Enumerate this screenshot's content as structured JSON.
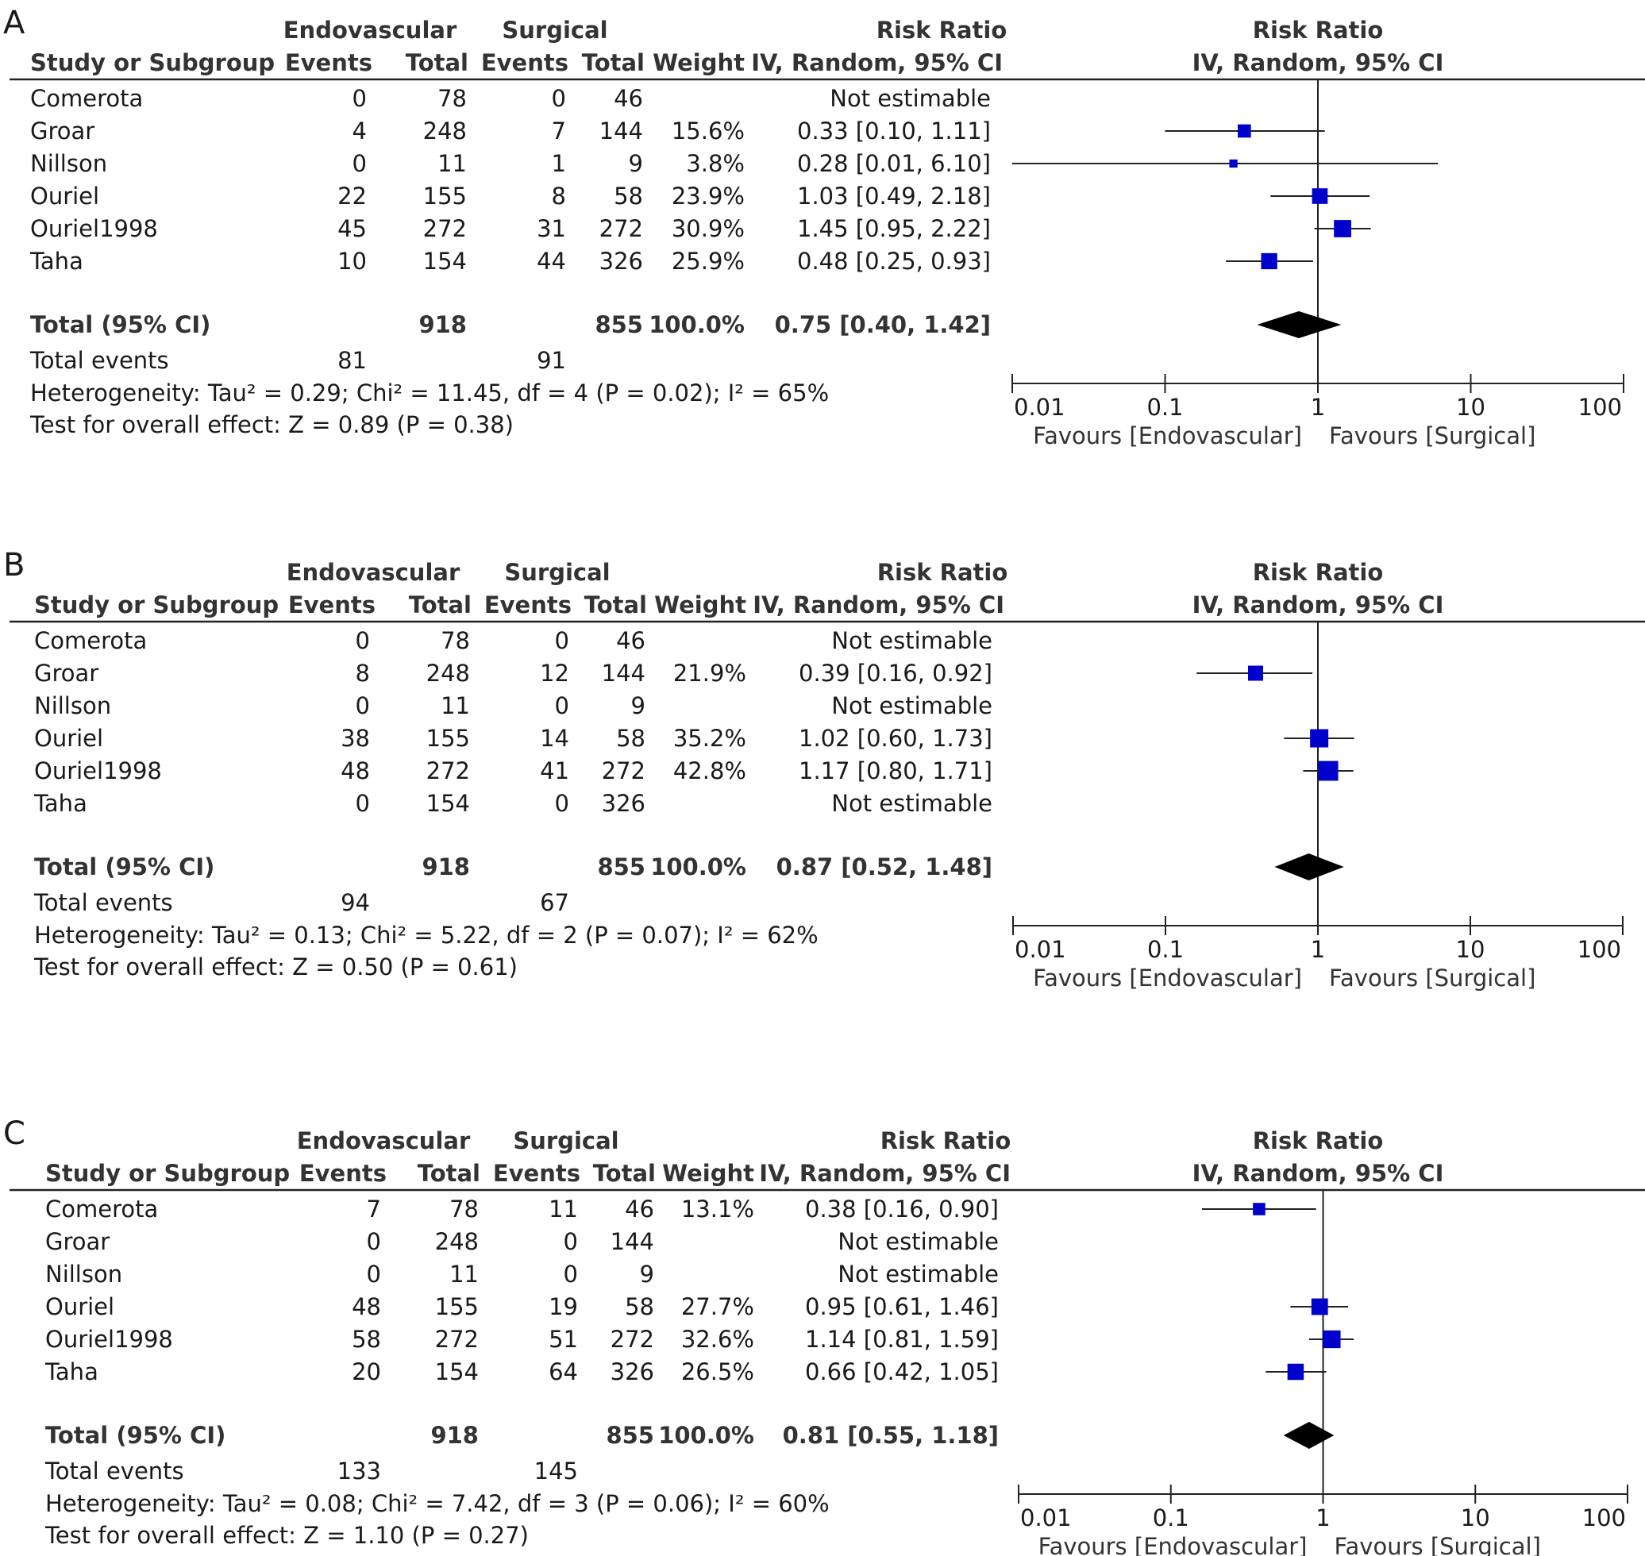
{
  "headers": {
    "group1": "Endovascular",
    "group2": "Surgical",
    "effect": "Risk Ratio",
    "effect_method": "IV, Random, 95% CI",
    "study": "Study or Subgroup",
    "events": "Events",
    "total": "Total",
    "weight": "Weight"
  },
  "axis": {
    "ticks": [
      0.01,
      0.1,
      1,
      10,
      100
    ],
    "tick_labels": [
      "0.01",
      "0.1",
      "1",
      "10",
      "100"
    ],
    "scale": "log",
    "favours_left": "Favours [Endovascular]",
    "favours_right": "Favours [Surgical]"
  },
  "colors": {
    "marker": "#0000cc",
    "diamond": "#000000",
    "text": "#1a1a1a"
  },
  "chart_data": [
    {
      "type": "forest",
      "panel": "A",
      "rows": [
        {
          "study": "Comerota",
          "e1": "0",
          "t1": "78",
          "e2": "0",
          "t2": "46",
          "weight": "",
          "ci": "Not estimable",
          "rr": null,
          "lo": null,
          "hi": null
        },
        {
          "study": "Groar",
          "e1": "4",
          "t1": "248",
          "e2": "7",
          "t2": "144",
          "weight": "15.6%",
          "ci": "0.33 [0.10, 1.11]",
          "rr": 0.33,
          "lo": 0.1,
          "hi": 1.11
        },
        {
          "study": "Nillson",
          "e1": "0",
          "t1": "11",
          "e2": "1",
          "t2": "9",
          "weight": "3.8%",
          "ci": "0.28 [0.01, 6.10]",
          "rr": 0.28,
          "lo": 0.01,
          "hi": 6.1
        },
        {
          "study": "Ouriel",
          "e1": "22",
          "t1": "155",
          "e2": "8",
          "t2": "58",
          "weight": "23.9%",
          "ci": "1.03 [0.49, 2.18]",
          "rr": 1.03,
          "lo": 0.49,
          "hi": 2.18
        },
        {
          "study": "Ouriel1998",
          "e1": "45",
          "t1": "272",
          "e2": "31",
          "t2": "272",
          "weight": "30.9%",
          "ci": "1.45 [0.95, 2.22]",
          "rr": 1.45,
          "lo": 0.95,
          "hi": 2.22
        },
        {
          "study": "Taha",
          "e1": "10",
          "t1": "154",
          "e2": "44",
          "t2": "326",
          "weight": "25.9%",
          "ci": "0.48 [0.25, 0.93]",
          "rr": 0.48,
          "lo": 0.25,
          "hi": 0.93
        }
      ],
      "total": {
        "label": "Total (95% CI)",
        "t1": "918",
        "t2": "855",
        "weight": "100.0%",
        "ci": "0.75 [0.40, 1.42]",
        "rr": 0.75,
        "lo": 0.4,
        "hi": 1.42
      },
      "total_events": {
        "label": "Total events",
        "e1": "81",
        "e2": "91"
      },
      "heterogeneity": "Heterogeneity: Tau² = 0.29; Chi² = 11.45, df = 4 (P = 0.02); I² = 65%",
      "overall": "Test for overall effect: Z = 0.89 (P = 0.38)"
    },
    {
      "type": "forest",
      "panel": "B",
      "rows": [
        {
          "study": "Comerota",
          "e1": "0",
          "t1": "78",
          "e2": "0",
          "t2": "46",
          "weight": "",
          "ci": "Not estimable",
          "rr": null,
          "lo": null,
          "hi": null
        },
        {
          "study": "Groar",
          "e1": "8",
          "t1": "248",
          "e2": "12",
          "t2": "144",
          "weight": "21.9%",
          "ci": "0.39 [0.16, 0.92]",
          "rr": 0.39,
          "lo": 0.16,
          "hi": 0.92
        },
        {
          "study": "Nillson",
          "e1": "0",
          "t1": "11",
          "e2": "0",
          "t2": "9",
          "weight": "",
          "ci": "Not estimable",
          "rr": null,
          "lo": null,
          "hi": null
        },
        {
          "study": "Ouriel",
          "e1": "38",
          "t1": "155",
          "e2": "14",
          "t2": "58",
          "weight": "35.2%",
          "ci": "1.02 [0.60, 1.73]",
          "rr": 1.02,
          "lo": 0.6,
          "hi": 1.73
        },
        {
          "study": "Ouriel1998",
          "e1": "48",
          "t1": "272",
          "e2": "41",
          "t2": "272",
          "weight": "42.8%",
          "ci": "1.17 [0.80, 1.71]",
          "rr": 1.17,
          "lo": 0.8,
          "hi": 1.71
        },
        {
          "study": "Taha",
          "e1": "0",
          "t1": "154",
          "e2": "0",
          "t2": "326",
          "weight": "",
          "ci": "Not estimable",
          "rr": null,
          "lo": null,
          "hi": null
        }
      ],
      "total": {
        "label": "Total (95% CI)",
        "t1": "918",
        "t2": "855",
        "weight": "100.0%",
        "ci": "0.87 [0.52, 1.48]",
        "rr": 0.87,
        "lo": 0.52,
        "hi": 1.48
      },
      "total_events": {
        "label": "Total events",
        "e1": "94",
        "e2": "67"
      },
      "heterogeneity": "Heterogeneity: Tau² = 0.13; Chi² = 5.22, df = 2 (P = 0.07); I² = 62%",
      "overall": "Test for overall effect: Z = 0.50 (P = 0.61)"
    },
    {
      "type": "forest",
      "panel": "C",
      "rows": [
        {
          "study": "Comerota",
          "e1": "7",
          "t1": "78",
          "e2": "11",
          "t2": "46",
          "weight": "13.1%",
          "ci": "0.38 [0.16, 0.90]",
          "rr": 0.38,
          "lo": 0.16,
          "hi": 0.9
        },
        {
          "study": "Groar",
          "e1": "0",
          "t1": "248",
          "e2": "0",
          "t2": "144",
          "weight": "",
          "ci": "Not estimable",
          "rr": null,
          "lo": null,
          "hi": null
        },
        {
          "study": "Nillson",
          "e1": "0",
          "t1": "11",
          "e2": "0",
          "t2": "9",
          "weight": "",
          "ci": "Not estimable",
          "rr": null,
          "lo": null,
          "hi": null
        },
        {
          "study": "Ouriel",
          "e1": "48",
          "t1": "155",
          "e2": "19",
          "t2": "58",
          "weight": "27.7%",
          "ci": "0.95 [0.61, 1.46]",
          "rr": 0.95,
          "lo": 0.61,
          "hi": 1.46
        },
        {
          "study": "Ouriel1998",
          "e1": "58",
          "t1": "272",
          "e2": "51",
          "t2": "272",
          "weight": "32.6%",
          "ci": "1.14 [0.81, 1.59]",
          "rr": 1.14,
          "lo": 0.81,
          "hi": 1.59
        },
        {
          "study": "Taha",
          "e1": "20",
          "t1": "154",
          "e2": "64",
          "t2": "326",
          "weight": "26.5%",
          "ci": "0.66 [0.42, 1.05]",
          "rr": 0.66,
          "lo": 0.42,
          "hi": 1.05
        }
      ],
      "total": {
        "label": "Total (95% CI)",
        "t1": "918",
        "t2": "855",
        "weight": "100.0%",
        "ci": "0.81 [0.55, 1.18]",
        "rr": 0.81,
        "lo": 0.55,
        "hi": 1.18
      },
      "total_events": {
        "label": "Total events",
        "e1": "133",
        "e2": "145"
      },
      "heterogeneity": "Heterogeneity: Tau² = 0.08; Chi² = 7.42, df = 3 (P = 0.06); I² = 60%",
      "overall": "Test for overall effect: Z = 1.10 (P = 0.27)"
    }
  ]
}
